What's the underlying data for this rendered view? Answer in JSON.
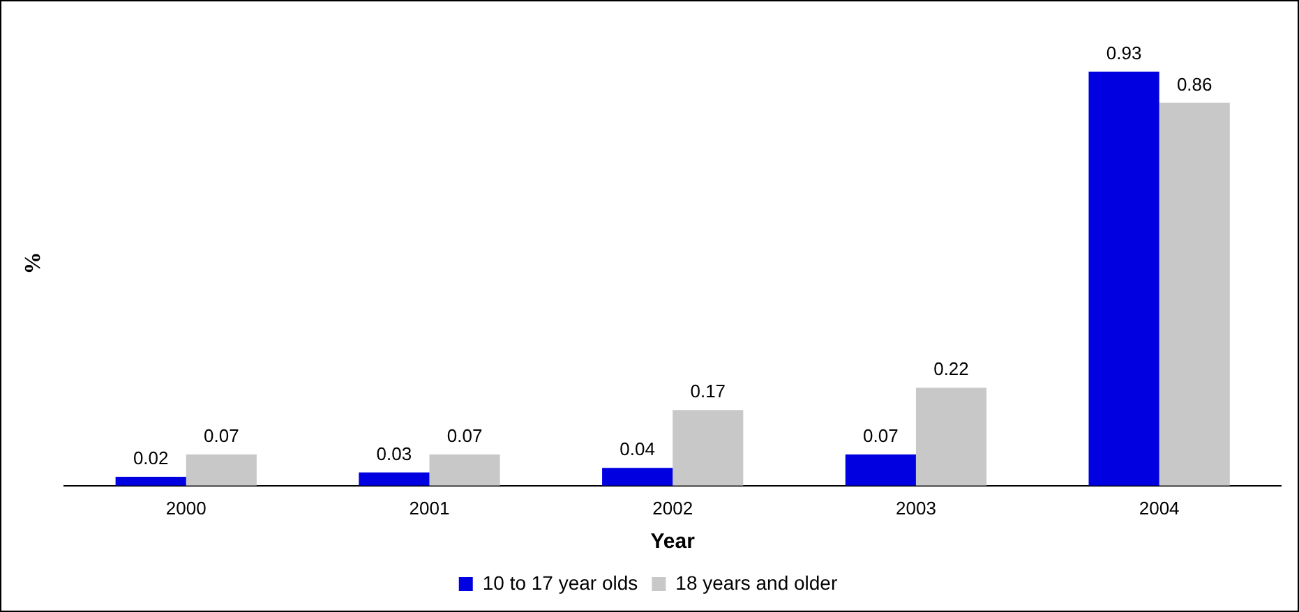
{
  "chart_data": {
    "type": "bar",
    "xlabel": "Year",
    "ylabel": "%",
    "categories": [
      "2000",
      "2001",
      "2002",
      "2003",
      "2004"
    ],
    "series": [
      {
        "name": "10 to 17 year olds",
        "color": "#0000e0",
        "values": [
          0.02,
          0.03,
          0.04,
          0.07,
          0.93
        ]
      },
      {
        "name": "18 years and older",
        "color": "#c8c8c8",
        "values": [
          0.07,
          0.07,
          0.17,
          0.22,
          0.86
        ]
      }
    ],
    "data_labels": true,
    "grid": false,
    "legend": "bottom"
  }
}
